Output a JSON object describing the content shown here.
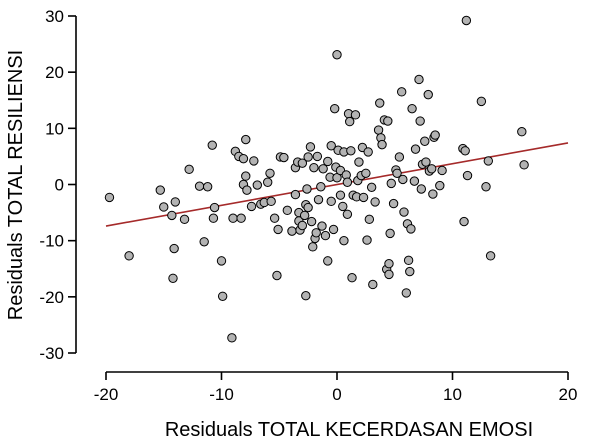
{
  "chart_data": {
    "type": "scatter",
    "title": "",
    "xlabel": "Residuals TOTAL KECERDASAN EMOSI",
    "ylabel": "Residuals TOTAL RESILIENSI",
    "xlim": [
      -20,
      20
    ],
    "ylim": [
      -30,
      30
    ],
    "xticks": [
      -20,
      -10,
      0,
      10,
      20
    ],
    "yticks": [
      -30,
      -20,
      -10,
      0,
      10,
      20,
      30
    ],
    "xtick_labels": [
      "-20",
      "-10",
      "0",
      "10",
      "20"
    ],
    "ytick_labels": [
      "-30",
      "-20",
      "-10",
      "0",
      "10",
      "20",
      "30"
    ],
    "grid": false,
    "point_fill": "#b3b3b3",
    "point_stroke": "#000000",
    "fit_line_color": "#a52a2a",
    "fit_line": {
      "x": [
        -20,
        20
      ],
      "y": [
        -7.4,
        7.4
      ]
    },
    "points": [
      [
        -19.7,
        -2.3
      ],
      [
        -18.0,
        -12.7
      ],
      [
        -15.3,
        -1.0
      ],
      [
        -15.0,
        -4.0
      ],
      [
        -14.3,
        -5.5
      ],
      [
        -14.2,
        -16.7
      ],
      [
        -14.1,
        -11.4
      ],
      [
        -14.0,
        -3.1
      ],
      [
        -13.2,
        -6.2
      ],
      [
        -12.8,
        2.7
      ],
      [
        -11.9,
        -0.3
      ],
      [
        -11.5,
        -10.2
      ],
      [
        -11.2,
        -0.4
      ],
      [
        -10.8,
        7.0
      ],
      [
        -10.7,
        -6.0
      ],
      [
        -10.6,
        -4.1
      ],
      [
        -10.0,
        -13.6
      ],
      [
        -9.9,
        -19.9
      ],
      [
        -9.1,
        -27.3
      ],
      [
        -9.0,
        -6.0
      ],
      [
        -8.8,
        5.9
      ],
      [
        -8.5,
        5.0
      ],
      [
        -8.3,
        -6.0
      ],
      [
        -8.1,
        4.6
      ],
      [
        -8.1,
        0.0
      ],
      [
        -7.9,
        8.0
      ],
      [
        -7.9,
        1.5
      ],
      [
        -7.8,
        -1.0
      ],
      [
        -7.4,
        -3.9
      ],
      [
        -7.2,
        4.2
      ],
      [
        -6.9,
        -0.1
      ],
      [
        -6.6,
        -3.5
      ],
      [
        -6.3,
        -3.2
      ],
      [
        -6.0,
        0.4
      ],
      [
        -5.8,
        2.0
      ],
      [
        -5.7,
        -3.0
      ],
      [
        -5.4,
        -6.0
      ],
      [
        -5.2,
        -16.2
      ],
      [
        -5.1,
        -8.0
      ],
      [
        -4.9,
        4.9
      ],
      [
        -4.6,
        4.8
      ],
      [
        -4.3,
        -4.6
      ],
      [
        -3.9,
        -8.3
      ],
      [
        -3.6,
        -1.8
      ],
      [
        -3.6,
        3.0
      ],
      [
        -3.4,
        4.0
      ],
      [
        -3.3,
        -5.0
      ],
      [
        -3.3,
        -6.5
      ],
      [
        -3.2,
        -8.1
      ],
      [
        -3.0,
        3.8
      ],
      [
        -3.0,
        -7.3
      ],
      [
        -2.8,
        -5.5
      ],
      [
        -2.7,
        -3.6
      ],
      [
        -2.7,
        -19.8
      ],
      [
        -2.6,
        -0.8
      ],
      [
        -2.5,
        4.9
      ],
      [
        -2.5,
        -4.1
      ],
      [
        -2.3,
        6.7
      ],
      [
        -2.2,
        -6.6
      ],
      [
        -2.1,
        -11.1
      ],
      [
        -2.0,
        3.0
      ],
      [
        -1.9,
        -9.6
      ],
      [
        -1.8,
        -8.6
      ],
      [
        -1.7,
        5.0
      ],
      [
        -1.6,
        -2.7
      ],
      [
        -1.4,
        -0.4
      ],
      [
        -1.3,
        -7.4
      ],
      [
        -1.2,
        2.8
      ],
      [
        -1.0,
        -9.1
      ],
      [
        -0.8,
        -13.6
      ],
      [
        -0.8,
        4.1
      ],
      [
        -0.6,
        1.3
      ],
      [
        -0.5,
        6.9
      ],
      [
        -0.5,
        -3.0
      ],
      [
        -0.3,
        -8.0
      ],
      [
        -0.2,
        13.5
      ],
      [
        -0.1,
        3.1
      ],
      [
        0.0,
        23.1
      ],
      [
        0.0,
        1.2
      ],
      [
        0.1,
        6.1
      ],
      [
        0.3,
        -1.9
      ],
      [
        0.3,
        2.5
      ],
      [
        0.5,
        -3.9
      ],
      [
        0.6,
        -10.0
      ],
      [
        0.6,
        5.8
      ],
      [
        0.8,
        1.7
      ],
      [
        0.9,
        -5.3
      ],
      [
        0.9,
        0.4
      ],
      [
        1.0,
        12.6
      ],
      [
        1.1,
        11.2
      ],
      [
        1.2,
        6.0
      ],
      [
        1.3,
        -16.6
      ],
      [
        1.4,
        -1.9
      ],
      [
        1.6,
        12.4
      ],
      [
        1.7,
        -2.2
      ],
      [
        1.8,
        0.7
      ],
      [
        1.9,
        4.0
      ],
      [
        2.1,
        1.6
      ],
      [
        2.2,
        6.6
      ],
      [
        2.3,
        -2.3
      ],
      [
        2.5,
        2.0
      ],
      [
        2.6,
        -9.9
      ],
      [
        2.7,
        5.8
      ],
      [
        2.8,
        -6.2
      ],
      [
        3.0,
        -0.5
      ],
      [
        3.1,
        -17.8
      ],
      [
        3.3,
        -3.1
      ],
      [
        3.6,
        9.7
      ],
      [
        3.7,
        14.5
      ],
      [
        3.8,
        8.3
      ],
      [
        3.9,
        7.1
      ],
      [
        4.1,
        11.5
      ],
      [
        4.3,
        -15.1
      ],
      [
        4.4,
        11.3
      ],
      [
        4.5,
        -16.0
      ],
      [
        4.5,
        -14.1
      ],
      [
        4.6,
        -8.7
      ],
      [
        4.7,
        0.2
      ],
      [
        4.9,
        -3.4
      ],
      [
        5.1,
        2.6
      ],
      [
        5.2,
        2.0
      ],
      [
        5.4,
        4.9
      ],
      [
        5.6,
        16.5
      ],
      [
        5.7,
        0.9
      ],
      [
        5.8,
        -4.9
      ],
      [
        6.0,
        -19.3
      ],
      [
        6.1,
        -7.0
      ],
      [
        6.2,
        -13.5
      ],
      [
        6.3,
        -15.5
      ],
      [
        6.4,
        -7.9
      ],
      [
        6.5,
        13.5
      ],
      [
        6.7,
        0.6
      ],
      [
        6.8,
        6.3
      ],
      [
        7.1,
        18.7
      ],
      [
        7.2,
        11.3
      ],
      [
        7.3,
        -0.8
      ],
      [
        7.4,
        3.6
      ],
      [
        7.6,
        7.7
      ],
      [
        7.7,
        4.0
      ],
      [
        7.9,
        16.0
      ],
      [
        8.0,
        2.4
      ],
      [
        8.2,
        2.8
      ],
      [
        8.3,
        -1.7
      ],
      [
        8.4,
        8.4
      ],
      [
        8.5,
        8.8
      ],
      [
        8.9,
        -0.2
      ],
      [
        9.1,
        2.5
      ],
      [
        10.9,
        6.4
      ],
      [
        11.0,
        -6.6
      ],
      [
        11.1,
        6.0
      ],
      [
        11.2,
        29.2
      ],
      [
        11.3,
        1.6
      ],
      [
        12.5,
        14.8
      ],
      [
        12.9,
        -0.4
      ],
      [
        13.1,
        4.2
      ],
      [
        13.3,
        -12.7
      ],
      [
        16.0,
        9.4
      ],
      [
        16.2,
        3.5
      ]
    ]
  }
}
